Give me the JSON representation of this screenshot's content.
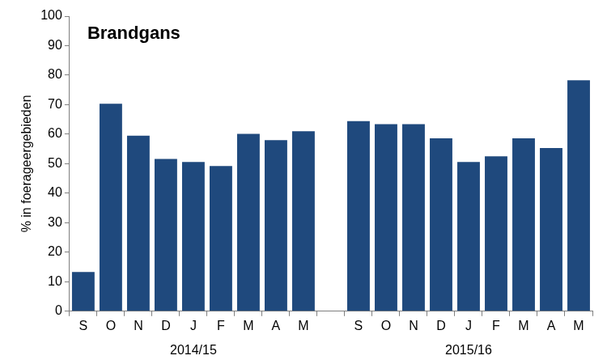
{
  "chart_data": {
    "type": "bar",
    "title": "Brandgans",
    "y_label": "% in foerageergebieden",
    "categories": [
      "S",
      "O",
      "N",
      "D",
      "J",
      "F",
      "M",
      "A",
      "M",
      null,
      "S",
      "O",
      "N",
      "D",
      "J",
      "F",
      "M",
      "A",
      "M"
    ],
    "category_groups": [
      "2014/15",
      "2015/16"
    ],
    "values": [
      13.3,
      70.3,
      59.5,
      51.6,
      50.6,
      49.2,
      60.1,
      58.0,
      61.0,
      null,
      64.4,
      63.4,
      63.4,
      58.6,
      50.6,
      52.5,
      58.6,
      55.3,
      78.3
    ],
    "color": "#1f497d",
    "ylim": [
      0,
      100
    ],
    "yticks": [
      0,
      10,
      20,
      30,
      40,
      50,
      60,
      70,
      80,
      90,
      100
    ],
    "grid": false
  }
}
